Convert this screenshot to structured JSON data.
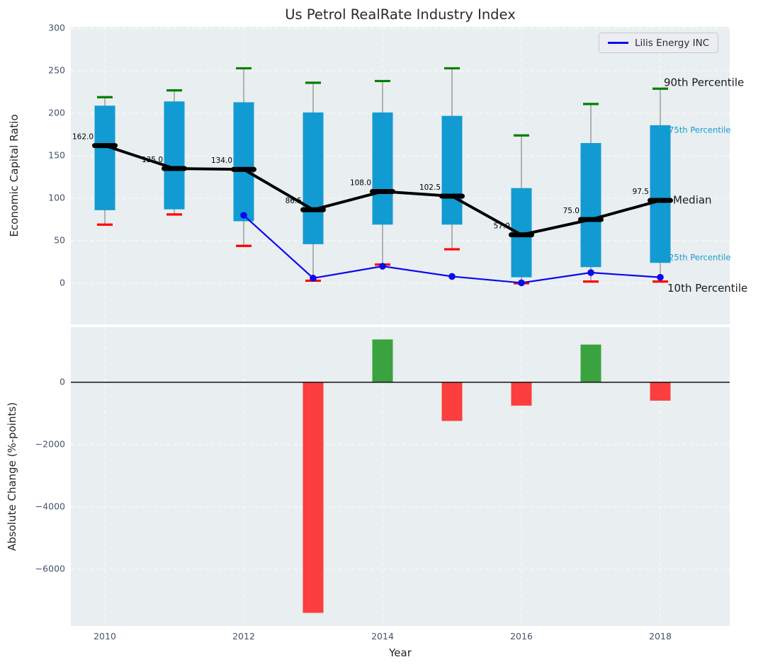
{
  "title": "Us Petrol RealRate Industry Index",
  "legend": {
    "label": "Lilis Energy INC"
  },
  "colors": {
    "figure_bg": "#ffffff",
    "axes_bg": "#e9eef0",
    "grid": "#f7f9fa",
    "box_fill": "#129bd2",
    "p90_cap": "#007f00",
    "p10_cap": "#ff0000",
    "median_line": "#000000",
    "company_line": "#0909ee",
    "bar_positive": "#3aa23f",
    "bar_negative": "#fb3e3e",
    "tick_label": "#44546a",
    "annotation_dark": "#1a1a1a",
    "annotation_cyan": "#189bd0",
    "whisker": "#888888",
    "zero_line": "#111111"
  },
  "chart_data": [
    {
      "type": "boxplot-timeseries",
      "title": "Us Petrol RealRate Industry Index",
      "xlabel": "Year",
      "ylabel": "Economic Capital Ratio",
      "x": [
        2010,
        2011,
        2012,
        2013,
        2014,
        2015,
        2016,
        2017,
        2018
      ],
      "xticks": [
        2010,
        2012,
        2014,
        2016,
        2018
      ],
      "yticks": [
        0,
        50,
        100,
        150,
        200,
        250,
        300
      ],
      "xlim": [
        2009.51,
        2019.0
      ],
      "ylim": [
        -48.3,
        301.7
      ],
      "grid": true,
      "series": [
        {
          "name": "90th Percentile",
          "role": "p90",
          "values": [
            219,
            227,
            253,
            236,
            238,
            253,
            174,
            211,
            229
          ]
        },
        {
          "name": "75th Percentile",
          "role": "q75",
          "values": [
            209,
            214,
            213,
            201,
            201,
            197,
            112,
            165,
            186
          ]
        },
        {
          "name": "Median",
          "role": "median",
          "values": [
            162.0,
            135.0,
            134.0,
            86.5,
            108.0,
            102.5,
            57.0,
            75.0,
            97.5
          ]
        },
        {
          "name": "25th Percentile",
          "role": "q25",
          "values": [
            86,
            87,
            73,
            46,
            69,
            69,
            7,
            19,
            24
          ]
        },
        {
          "name": "10th Percentile",
          "role": "p10",
          "values": [
            69,
            81,
            44,
            3,
            22,
            40,
            0,
            2,
            2
          ]
        },
        {
          "name": "Lilis Energy INC",
          "role": "company-line",
          "x": [
            2012,
            2013,
            2014,
            2015,
            2016,
            2017,
            2018
          ],
          "values": [
            80,
            6,
            20,
            8,
            0.5,
            12.5,
            7
          ]
        }
      ],
      "median_labels": [
        "162.0",
        "135.0",
        "134.0",
        "86.5",
        "108.0",
        "102.5",
        "57.0",
        "75.0",
        "97.5"
      ],
      "annotations": [
        {
          "text": "90th Percentile",
          "color": "#1a1a1a",
          "size": 15,
          "x": 937,
          "anchor_value": 229,
          "dy": -8
        },
        {
          "text": "75th Percentile",
          "color": "#189bd0",
          "size": 11.6,
          "x": 944,
          "anchor_value": 186,
          "dy": 7
        },
        {
          "text": "Median",
          "color": "#1a1a1a",
          "size": 15,
          "x": 950,
          "anchor_value": 97.5,
          "dy": 0
        },
        {
          "text": "25th Percentile",
          "color": "#189bd0",
          "size": 11.6,
          "x": 944,
          "anchor_value": 24,
          "dy": -7
        },
        {
          "text": "10th Percentile",
          "color": "#1a1a1a",
          "size": 15,
          "x": 942,
          "anchor_value": 2,
          "dy": 10
        }
      ],
      "legend_entries": [
        {
          "label": "Lilis Energy INC"
        }
      ]
    },
    {
      "type": "bar",
      "xlabel": "Year",
      "ylabel": "Absolute Change (%-points)",
      "x": [
        2013,
        2014,
        2015,
        2016,
        2017,
        2018
      ],
      "values": [
        -7400,
        1375,
        -1240,
        -750,
        1210,
        -590
      ],
      "xticks": [
        2010,
        2012,
        2014,
        2016,
        2018
      ],
      "yticks": [
        0,
        -2000,
        -4000,
        -6000
      ],
      "xlim": [
        2009.51,
        2019.0
      ],
      "ylim": [
        -7820,
        1770
      ],
      "grid": true
    }
  ]
}
